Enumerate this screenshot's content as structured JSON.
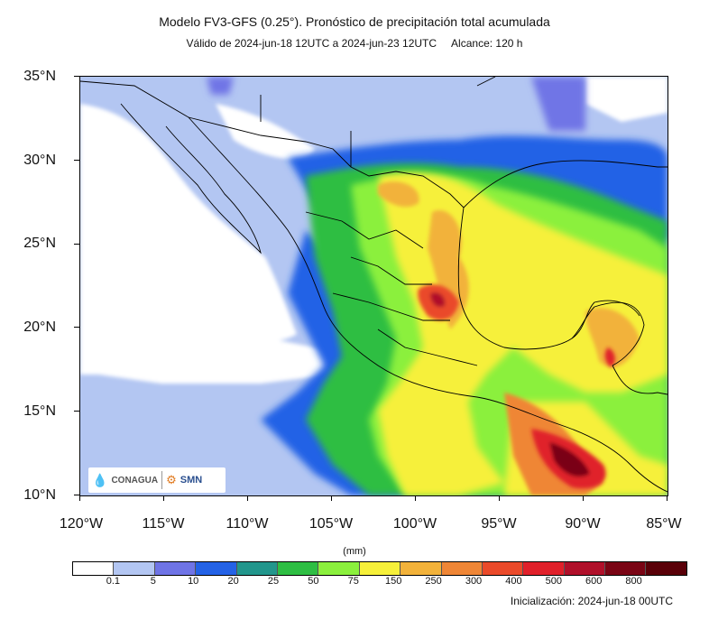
{
  "title": "Modelo FV3-GFS (0.25°). Pronóstico de precipitación total acumulada",
  "subtitle": "Válido de 2024-jun-18 12UTC a 2024-jun-23 12UTC     Alcance: 120 h",
  "y_axis": [
    "35°N",
    "30°N",
    "25°N",
    "20°N",
    "15°N",
    "10°N"
  ],
  "x_axis": [
    "120°W",
    "115°W",
    "110°W",
    "105°W",
    "100°W",
    "95°W",
    "90°W",
    "85°W"
  ],
  "colorbar": {
    "unit": "(mm)",
    "labels": [
      "0.1",
      "5",
      "10",
      "20",
      "25",
      "50",
      "75",
      "150",
      "250",
      "300",
      "400",
      "500",
      "600",
      "800"
    ],
    "colors": [
      "#ffffff",
      "#b3c6f2",
      "#6f74e6",
      "#2462e6",
      "#22968c",
      "#2ebe43",
      "#8bf03d",
      "#f6f03a",
      "#f2b23a",
      "#ef8636",
      "#ea4a2a",
      "#e0202a",
      "#b0102a",
      "#7a0414",
      "#5a0008"
    ]
  },
  "logos": {
    "conagua": "CONAGUA",
    "smn": "SMN"
  },
  "initialization": "Inicialización: 2024-jun-18 00UTC",
  "colors": {
    "ocean_bg": "#b3c6f2",
    "land_light": "#ffffff"
  }
}
